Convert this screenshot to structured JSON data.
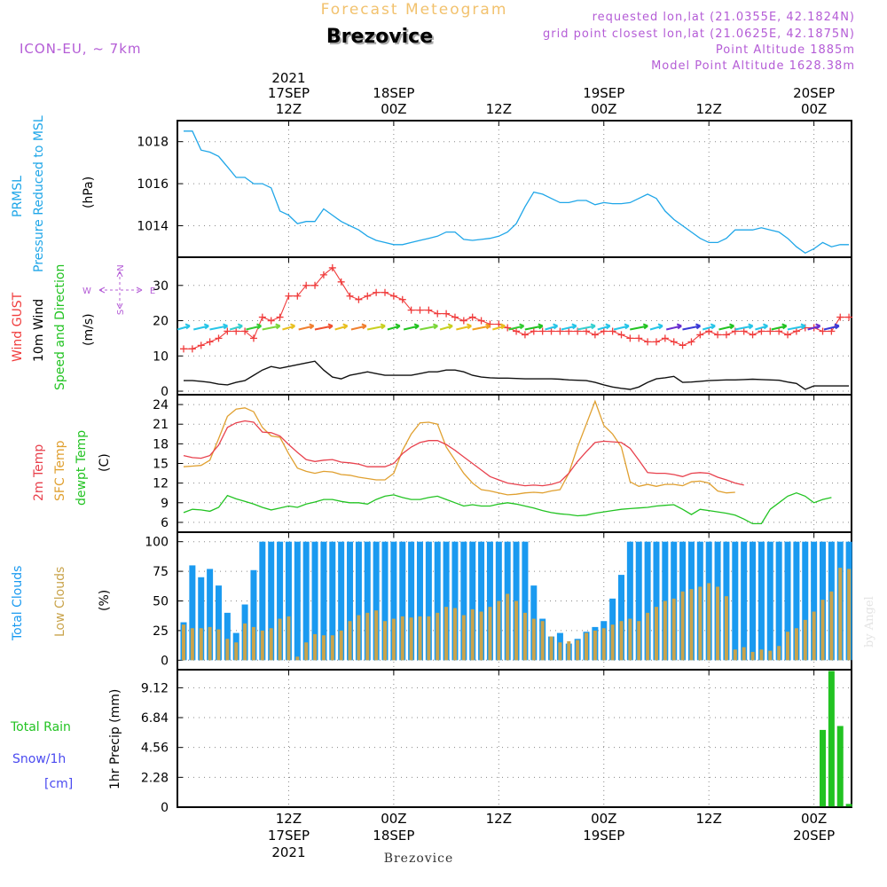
{
  "header": {
    "product": "Forecast Meteogram",
    "station": "Brezovice",
    "model": "ICON-EU, ~ 7km",
    "requested": "requested lon,lat (21.0355E, 42.1824N)",
    "gridpoint": "grid point closest lon,lat (21.0625E, 42.1875N)",
    "point_alt": "Point Altitude 1885m",
    "model_alt": "Model Point Altitude 1628.38m",
    "year": "2021",
    "footer_station": "Brezovice",
    "watermark": "by Angel"
  },
  "colors": {
    "pressure": "#1fa6e8",
    "gust": "#f03c3c",
    "wind": "#111111",
    "temp2m": "#e8414d",
    "sfc": "#e0a030",
    "dew": "#22c322",
    "total_clouds": "#1a9af0",
    "low_clouds": "#c9a44c",
    "rain": "#22c322",
    "snow_label": "#4a4af0",
    "dir_label": "#b45cd6",
    "header_purple": "#b45cd6",
    "product_title": "#f2c26e"
  },
  "time_axis": {
    "top": [
      {
        "h": 12,
        "l1": "2021",
        "l2": "17SEP",
        "l3": "12Z"
      },
      {
        "h": 24,
        "l1": "",
        "l2": "18SEP",
        "l3": "00Z"
      },
      {
        "h": 36,
        "l1": "",
        "l2": "",
        "l3": "12Z"
      },
      {
        "h": 48,
        "l1": "",
        "l2": "19SEP",
        "l3": "00Z"
      },
      {
        "h": 60,
        "l1": "",
        "l2": "",
        "l3": "12Z"
      },
      {
        "h": 72,
        "l1": "",
        "l2": "20SEP",
        "l3": "00Z"
      }
    ],
    "bottom": [
      {
        "h": 12,
        "l1": "12Z",
        "l2": "17SEP",
        "l3": "2021"
      },
      {
        "h": 24,
        "l1": "00Z",
        "l2": "18SEP",
        "l3": ""
      },
      {
        "h": 36,
        "l1": "12Z",
        "l2": "",
        "l3": ""
      },
      {
        "h": 48,
        "l1": "00Z",
        "l2": "19SEP",
        "l3": ""
      },
      {
        "h": 60,
        "l1": "12Z",
        "l2": "",
        "l3": ""
      },
      {
        "h": 72,
        "l1": "00Z",
        "l2": "20SEP",
        "l3": ""
      }
    ]
  },
  "panel_labels": {
    "pressure": {
      "l1": "PRMSL",
      "l2": "Pressure Reduced to MSL",
      "unit": "(hPa)"
    },
    "wind": {
      "gust": "Wind GUST",
      "wind10": "10m Wind",
      "speed": "Speed and Direction",
      "unit": "(m/s)"
    },
    "wind_dir": {
      "n": "N",
      "s": "S",
      "w": "W",
      "e": "E"
    },
    "temp": {
      "t2m": "2m Temp",
      "sfc": "SFC Temp",
      "dew": "dewpt Temp",
      "unit": "(C)"
    },
    "clouds": {
      "total": "Total Clouds",
      "low": "Low Clouds",
      "unit": "(%)"
    },
    "precip": {
      "total_rain": "Total  Rain",
      "snow": "Snow/1h",
      "cm": "[cm]",
      "axis": "1hr Precip (mm)"
    }
  },
  "chart_data": [
    {
      "id": "pressure",
      "type": "line",
      "title": "PRMSL Pressure Reduced to MSL",
      "ylabel": "(hPa)",
      "ylim": [
        1012.5,
        1019.0
      ],
      "yticks": [
        1014,
        1016,
        1018
      ],
      "x_hours": [
        0,
        1,
        2,
        3,
        4,
        5,
        6,
        7,
        8,
        9,
        10,
        11,
        12,
        13,
        14,
        15,
        16,
        17,
        18,
        19,
        20,
        21,
        22,
        23,
        24,
        25,
        26,
        27,
        28,
        29,
        30,
        31,
        32,
        33,
        34,
        35,
        36,
        37,
        38,
        39,
        40,
        41,
        42,
        43,
        44,
        45,
        46,
        47,
        48,
        49,
        50,
        51,
        52,
        53,
        54,
        55,
        56,
        57,
        58,
        59,
        60,
        61,
        62,
        63,
        64,
        65,
        66,
        67,
        68,
        69,
        70,
        71,
        72,
        73,
        74,
        75,
        76
      ],
      "values": [
        1018.5,
        1018.5,
        1017.6,
        1017.5,
        1017.3,
        1016.8,
        1016.3,
        1016.3,
        1016.0,
        1016.0,
        1015.8,
        1014.7,
        1014.5,
        1014.1,
        1014.2,
        1014.2,
        1014.8,
        1014.5,
        1014.2,
        1014.0,
        1013.8,
        1013.5,
        1013.3,
        1013.2,
        1013.1,
        1013.1,
        1013.2,
        1013.3,
        1013.4,
        1013.5,
        1013.7,
        1013.7,
        1013.35,
        1013.3,
        1013.35,
        1013.4,
        1013.5,
        1013.7,
        1014.1,
        1014.9,
        1015.6,
        1015.5,
        1015.3,
        1015.1,
        1015.1,
        1015.2,
        1015.2,
        1015.0,
        1015.1,
        1015.05,
        1015.05,
        1015.1,
        1015.3,
        1015.5,
        1015.3,
        1014.7,
        1014.3,
        1014.0,
        1013.7,
        1013.4,
        1013.2,
        1013.2,
        1013.4,
        1013.8,
        1013.8,
        1013.8,
        1013.9,
        1013.8,
        1013.7,
        1013.4,
        1013.0,
        1012.7,
        1012.9,
        1013.2,
        1013.0,
        1013.1,
        1013.1
      ]
    },
    {
      "id": "wind",
      "type": "line",
      "title": "Wind GUST / 10m Wind Speed and Direction",
      "ylabel": "(m/s)",
      "ylim": [
        -1,
        38
      ],
      "yticks": [
        0,
        10,
        20,
        30
      ],
      "x_hours": [
        0,
        1,
        2,
        3,
        4,
        5,
        6,
        7,
        8,
        9,
        10,
        11,
        12,
        13,
        14,
        15,
        16,
        17,
        18,
        19,
        20,
        21,
        22,
        23,
        24,
        25,
        26,
        27,
        28,
        29,
        30,
        31,
        32,
        33,
        34,
        35,
        36,
        37,
        38,
        39,
        40,
        41,
        42,
        43,
        44,
        45,
        46,
        47,
        48,
        49,
        50,
        51,
        52,
        53,
        54,
        55,
        56,
        57,
        58,
        59,
        60,
        61,
        62,
        63,
        64,
        65,
        66,
        67,
        68,
        69,
        70,
        71,
        72,
        73,
        74,
        75,
        76
      ],
      "series": [
        {
          "name": "Wind GUST",
          "values": [
            12,
            12,
            13,
            14,
            15,
            17,
            17,
            17,
            15,
            21,
            20,
            21,
            27,
            27,
            30,
            30,
            33,
            35,
            31,
            27,
            26,
            27,
            28,
            28,
            27,
            26,
            23,
            23,
            23,
            22,
            22,
            21,
            20,
            21,
            20,
            19,
            19,
            18,
            17,
            16,
            17,
            17,
            17,
            17,
            17,
            17,
            17,
            16,
            17,
            17,
            16,
            15,
            15,
            14,
            14,
            15,
            14,
            13,
            14,
            16,
            17,
            16,
            16,
            17,
            17,
            16,
            17,
            17,
            17,
            16,
            17,
            18,
            18,
            17,
            17,
            21,
            21
          ]
        },
        {
          "name": "10m Wind",
          "values": [
            3,
            3,
            2.8,
            2.5,
            2,
            1.8,
            2.5,
            3,
            4.5,
            6,
            7,
            6.5,
            7,
            7.5,
            8,
            8.5,
            6,
            4,
            3.5,
            4.5,
            5,
            5.5,
            5,
            4.5,
            4.5,
            4.5,
            4.5,
            5,
            5.5,
            5.5,
            6,
            6,
            5.5,
            4.5,
            4,
            3.8,
            3.7,
            3.7,
            3.6,
            3.5,
            3.5,
            3.5,
            3.5,
            3.4,
            3.2,
            3.1,
            3.0,
            2.5,
            1.8,
            1.2,
            0.8,
            0.5,
            1.2,
            2.5,
            3.5,
            3.8,
            4.2,
            2.5,
            2.6,
            2.8,
            3.0,
            3.1,
            3.2,
            3.2,
            3.3,
            3.4,
            3.3,
            3.2,
            3.1,
            2.6,
            2.2,
            0.5,
            1.5,
            1.5,
            1.5,
            1.5,
            1.5
          ]
        }
      ]
    },
    {
      "id": "temperature",
      "type": "line",
      "title": "2m Temp / SFC Temp / dewpt Temp",
      "ylabel": "(C)",
      "ylim": [
        4.5,
        25.5
      ],
      "yticks": [
        6,
        9,
        12,
        15,
        18,
        21,
        24
      ],
      "x_hours": [
        0,
        1,
        2,
        3,
        4,
        5,
        6,
        7,
        8,
        9,
        10,
        11,
        12,
        13,
        14,
        15,
        16,
        17,
        18,
        19,
        20,
        21,
        22,
        23,
        24,
        25,
        26,
        27,
        28,
        29,
        30,
        31,
        32,
        33,
        34,
        35,
        36,
        37,
        38,
        39,
        40,
        41,
        42,
        43,
        44,
        45,
        46,
        47,
        48,
        49,
        50,
        51,
        52,
        53,
        54,
        55,
        56,
        57,
        58,
        59,
        60,
        61,
        62,
        63,
        64,
        65,
        66,
        67,
        68,
        69,
        70,
        71,
        72,
        73,
        74,
        75,
        76
      ],
      "series": [
        {
          "name": "2m Temp",
          "values": [
            16.2,
            15.9,
            15.8,
            16.2,
            17.8,
            20.5,
            21.2,
            21.5,
            21.3,
            19.8,
            19.7,
            19.2,
            17.9,
            16.7,
            15.6,
            15.3,
            15.5,
            15.6,
            15.2,
            15.1,
            14.9,
            14.5,
            14.5,
            14.5,
            15.0,
            16.5,
            17.5,
            18.2,
            18.5,
            18.5,
            17.9,
            17.0,
            16.0,
            15.0,
            14.0,
            13.0,
            12.5,
            12.0,
            11.8,
            11.6,
            11.7,
            11.6,
            11.8,
            12.2,
            13.5,
            15.3,
            16.8,
            18.2,
            18.4,
            18.3,
            18.2,
            17.3,
            15.5,
            13.6,
            13.5,
            13.5,
            13.3,
            13.0,
            13.5,
            13.6,
            13.5,
            12.9,
            12.5,
            12.0,
            11.7
          ]
        },
        {
          "name": "SFC Temp",
          "values": [
            14.5,
            14.6,
            14.7,
            15.5,
            18.8,
            22.2,
            23.3,
            23.5,
            22.9,
            20.5,
            19.2,
            19.0,
            16.5,
            14.3,
            13.8,
            13.5,
            13.8,
            13.7,
            13.3,
            13.2,
            12.9,
            12.7,
            12.5,
            12.5,
            13.5,
            17.0,
            19.5,
            21.2,
            21.3,
            21.0,
            17.5,
            15.5,
            13.5,
            12.0,
            11.0,
            10.8,
            10.5,
            10.2,
            10.3,
            10.5,
            10.6,
            10.5,
            10.8,
            11.0,
            13.5,
            17.5,
            21.0,
            24.5,
            20.8,
            19.5,
            17.5,
            12.2,
            11.5,
            11.8,
            11.5,
            11.8,
            11.8,
            11.6,
            12.2,
            12.3,
            12.0,
            10.8,
            10.5,
            10.6
          ]
        },
        {
          "name": "dewpt Temp",
          "values": [
            7.5,
            8.0,
            7.9,
            7.7,
            8.3,
            10.1,
            9.6,
            9.2,
            8.8,
            8.3,
            7.9,
            8.2,
            8.5,
            8.3,
            8.8,
            9.1,
            9.5,
            9.5,
            9.2,
            9.0,
            9.0,
            8.8,
            9.5,
            10.0,
            10.2,
            9.8,
            9.5,
            9.5,
            9.8,
            10.0,
            9.5,
            9.0,
            8.5,
            8.7,
            8.5,
            8.5,
            8.8,
            9.0,
            8.8,
            8.5,
            8.2,
            7.8,
            7.5,
            7.3,
            7.2,
            7.0,
            7.1,
            7.4,
            7.6,
            7.8,
            8.0,
            8.1,
            8.2,
            8.3,
            8.5,
            8.6,
            8.7,
            8.0,
            7.2,
            8.0,
            7.8,
            7.6,
            7.4,
            7.1,
            6.5,
            5.8,
            5.8,
            8.0,
            9.0,
            10.0,
            10.5,
            10.0,
            9.0,
            9.5,
            9.8
          ]
        }
      ]
    },
    {
      "id": "clouds",
      "type": "bar",
      "title": "Total Clouds / Low Clouds",
      "ylabel": "(%)",
      "ylim": [
        -8,
        108
      ],
      "yticks": [
        0,
        25,
        50,
        75,
        100
      ],
      "x_hours": [
        0,
        1,
        2,
        3,
        4,
        5,
        6,
        7,
        8,
        9,
        10,
        11,
        12,
        13,
        14,
        15,
        16,
        17,
        18,
        19,
        20,
        21,
        22,
        23,
        24,
        25,
        26,
        27,
        28,
        29,
        30,
        31,
        32,
        33,
        34,
        35,
        36,
        37,
        38,
        39,
        40,
        41,
        42,
        43,
        44,
        45,
        46,
        47,
        48,
        49,
        50,
        51,
        52,
        53,
        54,
        55,
        56,
        57,
        58,
        59,
        60,
        61,
        62,
        63,
        64,
        65,
        66,
        67,
        68,
        69,
        70,
        71,
        72,
        73,
        74,
        75,
        76
      ],
      "series": [
        {
          "name": "Total Clouds",
          "values": [
            32,
            80,
            70,
            77,
            63,
            40,
            23,
            47,
            76,
            100,
            100,
            100,
            100,
            100,
            100,
            100,
            100,
            100,
            100,
            100,
            100,
            100,
            100,
            100,
            100,
            100,
            100,
            100,
            100,
            100,
            100,
            100,
            100,
            100,
            100,
            100,
            100,
            100,
            100,
            100,
            63,
            35,
            20,
            23,
            14,
            18,
            24,
            28,
            33,
            52,
            72,
            100,
            100,
            100,
            100,
            100,
            100,
            100,
            100,
            100,
            100,
            100,
            100,
            100,
            100,
            100,
            100,
            100,
            100,
            100,
            100,
            100,
            100,
            100,
            100,
            100,
            100
          ]
        },
        {
          "name": "Low Clouds",
          "values": [
            30,
            27,
            27,
            28,
            26,
            18,
            15,
            31,
            28,
            25,
            27,
            35,
            37,
            3,
            15,
            22,
            21,
            21,
            25,
            33,
            38,
            40,
            42,
            33,
            35,
            37,
            36,
            37,
            37,
            40,
            45,
            44,
            38,
            43,
            41,
            45,
            50,
            56,
            50,
            40,
            35,
            33,
            20,
            15,
            16,
            17,
            23,
            25,
            27,
            30,
            33,
            35,
            33,
            40,
            45,
            50,
            52,
            58,
            60,
            62,
            65,
            62,
            54,
            9,
            11,
            7,
            9,
            8,
            12,
            24,
            27,
            34,
            41,
            51,
            58,
            78,
            77
          ]
        }
      ]
    },
    {
      "id": "precip",
      "type": "bar",
      "title": "1hr Precip (mm)",
      "ylabel": "1hr Precip (mm)",
      "ylim": [
        0,
        10.5
      ],
      "yticks": [
        0,
        2.28,
        4.56,
        6.84,
        9.12
      ],
      "series": [
        {
          "name": "Total Rain",
          "x_hours": [
            72,
            73,
            74,
            75,
            76
          ],
          "values": [
            0.05,
            5.9,
            10.4,
            6.2,
            0.25
          ]
        }
      ]
    }
  ]
}
